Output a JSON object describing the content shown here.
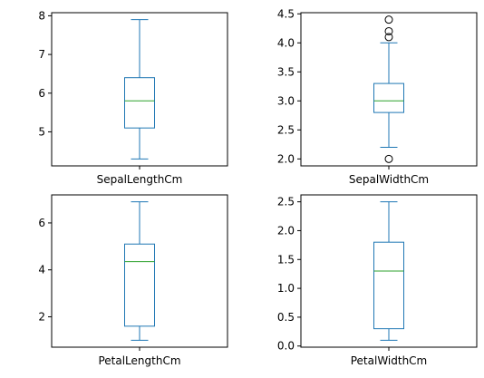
{
  "colors": {
    "box": "#1f77b4",
    "median": "#2ca02c",
    "frame": "#000000"
  },
  "chart_data": [
    {
      "type": "box",
      "category": "SepalLengthCm",
      "ylim": [
        4.12,
        8.08
      ],
      "yticks": [
        5,
        6,
        7,
        8
      ],
      "ytick_labels": [
        "5",
        "6",
        "7",
        "8"
      ],
      "box": {
        "whislo": 4.3,
        "q1": 5.1,
        "med": 5.8,
        "q3": 6.4,
        "whishi": 7.9
      },
      "fliers": []
    },
    {
      "type": "box",
      "category": "SepalWidthCm",
      "ylim": [
        1.88,
        4.52
      ],
      "yticks": [
        2.0,
        2.5,
        3.0,
        3.5,
        4.0,
        4.5
      ],
      "ytick_labels": [
        "2.0",
        "2.5",
        "3.0",
        "3.5",
        "4.0",
        "4.5"
      ],
      "box": {
        "whislo": 2.2,
        "q1": 2.8,
        "med": 3.0,
        "q3": 3.3,
        "whishi": 4.0
      },
      "fliers": [
        4.4,
        4.1,
        4.2,
        2.0
      ]
    },
    {
      "type": "box",
      "category": "PetalLengthCm",
      "ylim": [
        0.705,
        7.195
      ],
      "yticks": [
        2,
        4,
        6
      ],
      "ytick_labels": [
        "2",
        "4",
        "6"
      ],
      "box": {
        "whislo": 1.0,
        "q1": 1.6,
        "med": 4.35,
        "q3": 5.1,
        "whishi": 6.9
      },
      "fliers": []
    },
    {
      "type": "box",
      "category": "PetalWidthCm",
      "ylim": [
        -0.02,
        2.62
      ],
      "yticks": [
        0.0,
        0.5,
        1.0,
        1.5,
        2.0,
        2.5
      ],
      "ytick_labels": [
        "0.0",
        "0.5",
        "1.0",
        "1.5",
        "2.0",
        "2.5"
      ],
      "box": {
        "whislo": 0.1,
        "q1": 0.3,
        "med": 1.3,
        "q3": 1.8,
        "whishi": 2.5
      },
      "fliers": []
    }
  ]
}
